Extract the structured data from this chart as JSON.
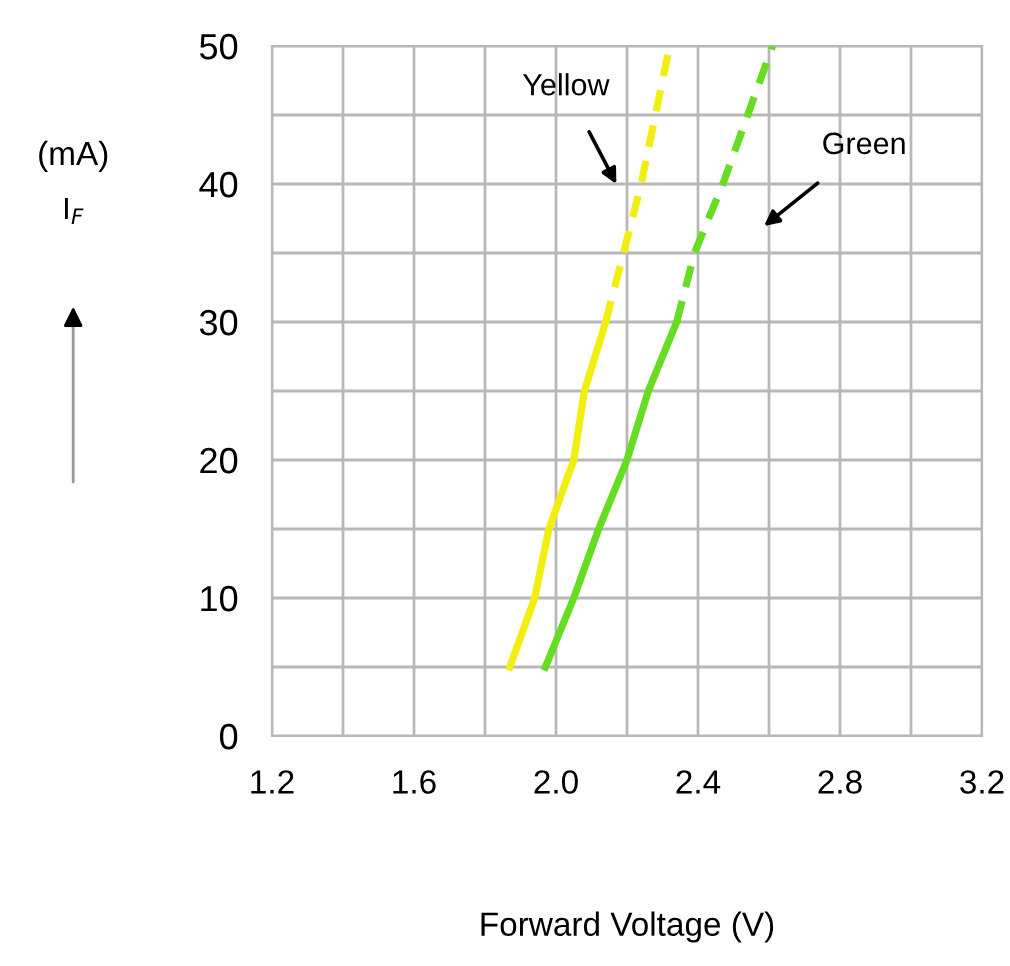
{
  "chart_data": {
    "type": "line",
    "xlabel": "Forward Voltage (V)",
    "ylabel": "I$_{F}$",
    "annotations": [
      "(mA)",
      "Yellow",
      "Green"
    ],
    "series": [
      {
        "color": "#f2ee10",
        "line_style": "solid",
        "x": [
          1.87,
          1.94,
          1.98,
          2.05,
          2.08,
          2.14
        ],
        "values": [
          5,
          10,
          15,
          20,
          25,
          30
        ]
      },
      {
        "color": "#f2ee10",
        "line_style": "dashed",
        "x": [
          2.14,
          2.19,
          2.24,
          2.32
        ],
        "values": [
          30,
          35,
          40,
          50
        ]
      },
      {
        "color": "#66dd22",
        "line_style": "solid",
        "x": [
          1.97,
          2.05,
          2.12,
          2.2,
          2.26,
          2.34
        ],
        "values": [
          5,
          10,
          15,
          20,
          25,
          30
        ]
      },
      {
        "color": "#66dd22",
        "line_style": "dashed",
        "x": [
          2.34,
          2.39,
          2.47,
          2.54,
          2.61
        ],
        "values": [
          30,
          35,
          40,
          45,
          50
        ]
      }
    ],
    "xlim": [
      1.2,
      3.2
    ],
    "ylim": [
      0,
      50
    ],
    "xticks": [
      1.2,
      {
        "value": 1.4,
        "label": null
      },
      1.6,
      {
        "value": 1.8,
        "label": null
      },
      {
        "value": 2.0,
        "label": "2.0"
      },
      {
        "value": 2.2,
        "label": null
      },
      2.4,
      {
        "value": 2.6,
        "label": null
      },
      2.8,
      {
        "value": 3.0,
        "label": null
      },
      3.2
    ],
    "yticks": [
      0,
      {
        "value": 5,
        "label": null
      },
      10,
      {
        "value": 15,
        "label": null
      },
      20,
      {
        "value": 25,
        "label": null
      },
      30,
      {
        "value": 35,
        "label": null
      },
      40,
      {
        "value": 45,
        "label": null
      },
      50
    ],
    "grid": true,
    "marker": "none"
  }
}
